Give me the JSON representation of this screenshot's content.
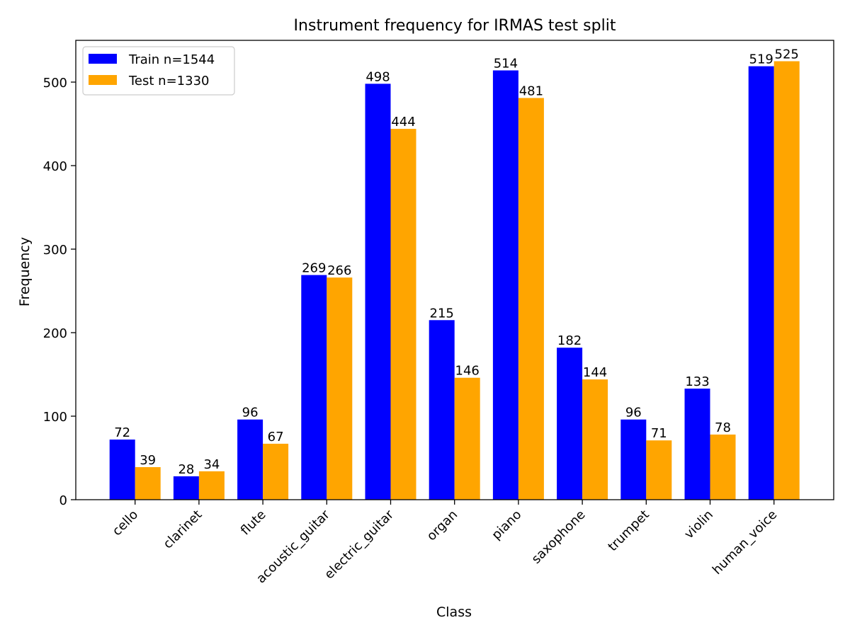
{
  "chart_data": {
    "type": "bar",
    "title": "Instrument frequency for IRMAS test split",
    "xlabel": "Class",
    "ylabel": "Frequency",
    "ylim": [
      0,
      550
    ],
    "yticks": [
      0,
      100,
      200,
      300,
      400,
      500
    ],
    "grid": false,
    "legend_position": "top-left",
    "categories": [
      "cello",
      "clarinet",
      "flute",
      "acoustic_guitar",
      "electric_guitar",
      "organ",
      "piano",
      "saxophone",
      "trumpet",
      "violin",
      "human_voice"
    ],
    "series": [
      {
        "name": "Train n=1544",
        "color": "#0000ff",
        "values": [
          72,
          28,
          96,
          269,
          498,
          215,
          514,
          182,
          96,
          133,
          519
        ]
      },
      {
        "name": "Test n=1330",
        "color": "#ffa500",
        "values": [
          39,
          34,
          67,
          266,
          444,
          146,
          481,
          144,
          71,
          78,
          525
        ]
      }
    ]
  }
}
